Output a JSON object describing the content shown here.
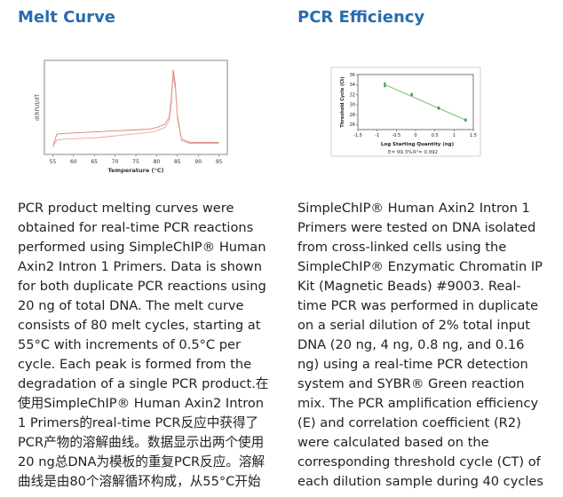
{
  "melt": {
    "heading": "Melt Curve",
    "figure": {
      "ylabel": "d(RFU)/dT",
      "xlabel": "Temperature (°C)",
      "xticks": [
        "55",
        "60",
        "65",
        "70",
        "75",
        "80",
        "85",
        "90",
        "95"
      ]
    },
    "body": "PCR product melting curves were\nobtained for real-time PCR reactions\nperformed using SimpleChIP® Human\nAxin2 Intron 1 Primers. Data is shown\nfor both duplicate PCR reactions using\n20 ng of total DNA. The melt curve\nconsists of 80 melt cycles, starting at\n55°C with increments of 0.5°C per\ncycle. Each peak is formed from the\ndegradation of a single PCR product.在\n使用SimpleChIP® Human Axin2 Intron\n1 Primers的real-time PCR反应中获得了\nPCR产物的溶解曲线。数据显示出两个使用\n20 ng总DNA为模板的重复PCR反应。溶解\n曲线是由80个溶解循环构成，从55°C开始"
  },
  "efficiency": {
    "heading": "PCR Efficiency",
    "figure": {
      "ylabel": "Threshold Cycle (Ct)",
      "xlabel": "Log Starting Quantity (ng)",
      "yticks": [
        "36",
        "34",
        "32",
        "30",
        "28",
        "26"
      ],
      "xticks": [
        "-1.5",
        "-1",
        "-0.5",
        "0",
        "0.5",
        "1",
        "1.5"
      ],
      "efficiency_label": "E= 99.3%",
      "r2_label": "R²= 0.992"
    },
    "body": "SimpleChIP® Human Axin2 Intron 1\nPrimers were tested on DNA isolated\nfrom cross-linked cells using the\nSimpleChIP® Enzymatic Chromatin IP\nKit (Magnetic Beads) #9003. Real-\ntime PCR was performed in duplicate\non a serial dilution of 2% total input\nDNA (20 ng, 4 ng, 0.8 ng, and 0.16\nng) using a real-time PCR detection\nsystem and SYBR® Green reaction\nmix. The PCR amplification efficiency\n(E) and correlation coefficient (R2)\nwere calculated based on the\ncorresponding threshold cycle (CT) of\neach dilution sample during 40 cycles"
  },
  "chart_data": [
    {
      "type": "line",
      "title": "",
      "xlabel": "Temperature (°C)",
      "ylabel": "d(RFU)/dT",
      "xlim": [
        53,
        97
      ],
      "x_ticks": [
        55,
        60,
        65,
        70,
        75,
        80,
        85,
        90,
        95
      ],
      "grid": false,
      "series": [
        {
          "x": [
            55,
            56,
            58,
            62,
            66,
            70,
            74,
            78,
            80,
            82,
            83,
            83.5,
            84,
            84.5,
            85,
            86,
            88,
            92,
            95
          ],
          "values": [
            0.05,
            0.2,
            0.21,
            0.22,
            0.23,
            0.24,
            0.25,
            0.26,
            0.28,
            0.32,
            0.4,
            0.62,
            0.97,
            0.8,
            0.42,
            0.14,
            0.1,
            0.1,
            0.1
          ]
        },
        {
          "x": [
            55,
            56,
            58,
            62,
            66,
            70,
            74,
            78,
            80,
            82,
            83,
            83.5,
            84,
            84.5,
            85,
            86,
            88,
            92,
            95
          ],
          "values": [
            0.05,
            0.13,
            0.14,
            0.15,
            0.16,
            0.18,
            0.2,
            0.22,
            0.24,
            0.28,
            0.36,
            0.55,
            0.9,
            0.74,
            0.38,
            0.12,
            0.09,
            0.09,
            0.09
          ]
        }
      ]
    },
    {
      "type": "scatter",
      "title": "",
      "xlabel": "Log Starting Quantity (ng)",
      "ylabel": "Threshold Cycle (Ct)",
      "xlim": [
        -1.5,
        1.5
      ],
      "ylim": [
        25,
        36
      ],
      "x_ticks": [
        -1.5,
        -1,
        -0.5,
        0,
        0.5,
        1,
        1.5
      ],
      "y_ticks": [
        26,
        28,
        30,
        32,
        34,
        36
      ],
      "grid": false,
      "points_x": [
        -0.8,
        -0.8,
        -0.1,
        -0.1,
        0.6,
        0.6,
        1.3,
        1.3
      ],
      "points_y": [
        34.2,
        33.7,
        32.1,
        31.9,
        29.4,
        29.2,
        27.0,
        26.8
      ],
      "fit_line": {
        "x": [
          -0.8,
          1.3
        ],
        "y": [
          34.0,
          26.9
        ]
      },
      "efficiency": "E= 99.3%",
      "r2": "R²= 0.992"
    }
  ]
}
